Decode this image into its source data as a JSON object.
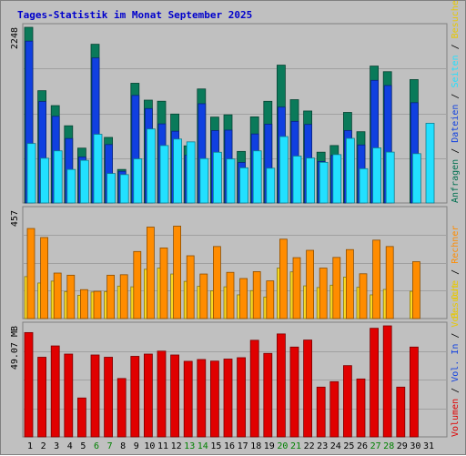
{
  "title": "Tages-Statistik im Monat September 2025",
  "colors": {
    "background": "#c0c0c0",
    "panel_border": "#808080",
    "title": "#0000cc",
    "hits": "#0a7a5a",
    "files": "#1040e0",
    "pages": "#22e0ff",
    "visits": "#f8d820",
    "sites": "#ff8c00",
    "volume": "#e00000",
    "weekend_label": "#008000",
    "weekday_label": "#000000"
  },
  "chart_data": [
    {
      "type": "bar",
      "panel": "top",
      "ylabel": "2248",
      "ymax": 2248,
      "categories": [
        "1",
        "2",
        "3",
        "4",
        "5",
        "6",
        "7",
        "8",
        "9",
        "10",
        "11",
        "12",
        "13",
        "14",
        "15",
        "16",
        "17",
        "18",
        "19",
        "20",
        "21",
        "22",
        "23",
        "24",
        "25",
        "26",
        "27",
        "28",
        "29",
        "30",
        "31"
      ],
      "right_labels": [
        {
          "text": "Anfragen",
          "color": "#007050"
        },
        {
          "text": " / ",
          "color": "#000000"
        },
        {
          "text": "Dateien",
          "color": "#1040e0"
        },
        {
          "text": " / ",
          "color": "#000000"
        },
        {
          "text": "Seiten",
          "color": "#22e0ff"
        },
        {
          "text": " / ",
          "color": "#000000"
        },
        {
          "text": "Besuche",
          "color": "#e8c800"
        }
      ],
      "series": [
        {
          "name": "Anfragen",
          "color": "#0a7a5a",
          "values": [
            2248,
            1437,
            1246,
            988,
            702,
            2031,
            839,
            429,
            1532,
            1316,
            1302,
            1138,
            731,
            1459,
            1099,
            1128,
            660,
            1102,
            1301,
            1764,
            1322,
            1177,
            650,
            735,
            1159,
            912,
            1752,
            1680,
            0,
            1579,
            null
          ]
        },
        {
          "name": "Dateien",
          "color": "#1040e0",
          "values": [
            2071,
            1298,
            1109,
            825,
            589,
            1856,
            747,
            405,
            1376,
            1208,
            1012,
            918,
            610,
            1270,
            926,
            932,
            518,
            883,
            1008,
            1227,
            1044,
            1005,
            531,
            609,
            927,
            742,
            1569,
            1503,
            0,
            1283,
            null
          ]
        },
        {
          "name": "Seiten",
          "color": "#22e0ff",
          "values": [
            761,
            573,
            667,
            429,
            546,
            879,
            377,
            363,
            565,
            947,
            735,
            818,
            782,
            568,
            649,
            563,
            450,
            667,
            445,
            850,
            600,
            575,
            520,
            619,
            827,
            439,
            705,
            651,
            0,
            631,
            1020
          ]
        }
      ]
    },
    {
      "type": "bar",
      "panel": "middle",
      "ylabel": "457",
      "ymax": 457,
      "categories": [
        "1",
        "2",
        "3",
        "4",
        "5",
        "6",
        "7",
        "8",
        "9",
        "10",
        "11",
        "12",
        "13",
        "14",
        "15",
        "16",
        "17",
        "18",
        "19",
        "20",
        "21",
        "22",
        "23",
        "24",
        "25",
        "26",
        "27",
        "28",
        "29",
        "30",
        "31"
      ],
      "right_labels": [
        {
          "text": "Besuche",
          "color": "#e8c800"
        },
        {
          "text": " / ",
          "color": "#000000"
        },
        {
          "text": "Rechner",
          "color": "#ff8c00"
        }
      ],
      "series": [
        {
          "name": "Besuche",
          "color": "#f8d820",
          "values": [
            177,
            150,
            158,
            114,
            98,
            112,
            114,
            137,
            134,
            208,
            213,
            188,
            157,
            136,
            117,
            134,
            100,
            118,
            91,
            213,
            197,
            138,
            131,
            141,
            175,
            132,
            100,
            123,
            0,
            115,
            null
          ]
        },
        {
          "name": "Rechner",
          "color": "#ff8c00",
          "values": [
            380,
            342,
            192,
            183,
            122,
            115,
            183,
            185,
            283,
            386,
            298,
            390,
            265,
            188,
            304,
            195,
            169,
            198,
            159,
            335,
            257,
            288,
            213,
            258,
            291,
            189,
            331,
            304,
            0,
            240,
            null
          ]
        }
      ]
    },
    {
      "type": "bar",
      "panel": "bottom",
      "ylabel": "49.07 MB",
      "ymax": 49.07,
      "categories": [
        "1",
        "2",
        "3",
        "4",
        "5",
        "6",
        "7",
        "8",
        "9",
        "10",
        "11",
        "12",
        "13",
        "14",
        "15",
        "16",
        "17",
        "18",
        "19",
        "20",
        "21",
        "22",
        "23",
        "24",
        "25",
        "26",
        "27",
        "28",
        "29",
        "30",
        "31"
      ],
      "right_labels": [
        {
          "text": "Volumen",
          "color": "#e00000"
        },
        {
          "text": " / ",
          "color": "#000000"
        },
        {
          "text": "Vol. In",
          "color": "#1040e0"
        },
        {
          "text": " / ",
          "color": "#000000"
        },
        {
          "text": "Vol. Out",
          "color": "#e8c800"
        }
      ],
      "series": [
        {
          "name": "Volumen",
          "color": "#e00000",
          "values": [
            46.1,
            35.2,
            40.2,
            36.6,
            17.2,
            36.2,
            35.2,
            25.8,
            35.6,
            36.6,
            37.9,
            36.2,
            33.4,
            34.2,
            33.5,
            34.4,
            35.0,
            42.7,
            36.9,
            45.5,
            39.7,
            42.8,
            22.0,
            24.4,
            31.5,
            25.6,
            48.0,
            49.07,
            22.0,
            39.7,
            null
          ]
        }
      ]
    }
  ],
  "x_axis": {
    "days": [
      {
        "label": "1",
        "weekend": false
      },
      {
        "label": "2",
        "weekend": false
      },
      {
        "label": "3",
        "weekend": false
      },
      {
        "label": "4",
        "weekend": false
      },
      {
        "label": "5",
        "weekend": false
      },
      {
        "label": "6",
        "weekend": true
      },
      {
        "label": "7",
        "weekend": true
      },
      {
        "label": "8",
        "weekend": false
      },
      {
        "label": "9",
        "weekend": false
      },
      {
        "label": "10",
        "weekend": false
      },
      {
        "label": "11",
        "weekend": false
      },
      {
        "label": "12",
        "weekend": false
      },
      {
        "label": "13",
        "weekend": true
      },
      {
        "label": "14",
        "weekend": true
      },
      {
        "label": "15",
        "weekend": false
      },
      {
        "label": "16",
        "weekend": false
      },
      {
        "label": "17",
        "weekend": false
      },
      {
        "label": "18",
        "weekend": false
      },
      {
        "label": "19",
        "weekend": false
      },
      {
        "label": "20",
        "weekend": true
      },
      {
        "label": "21",
        "weekend": true
      },
      {
        "label": "22",
        "weekend": false
      },
      {
        "label": "23",
        "weekend": false
      },
      {
        "label": "24",
        "weekend": false
      },
      {
        "label": "25",
        "weekend": false
      },
      {
        "label": "26",
        "weekend": false
      },
      {
        "label": "27",
        "weekend": true
      },
      {
        "label": "28",
        "weekend": true
      },
      {
        "label": "29",
        "weekend": false
      },
      {
        "label": "30",
        "weekend": false
      },
      {
        "label": "31",
        "weekend": false
      }
    ]
  }
}
